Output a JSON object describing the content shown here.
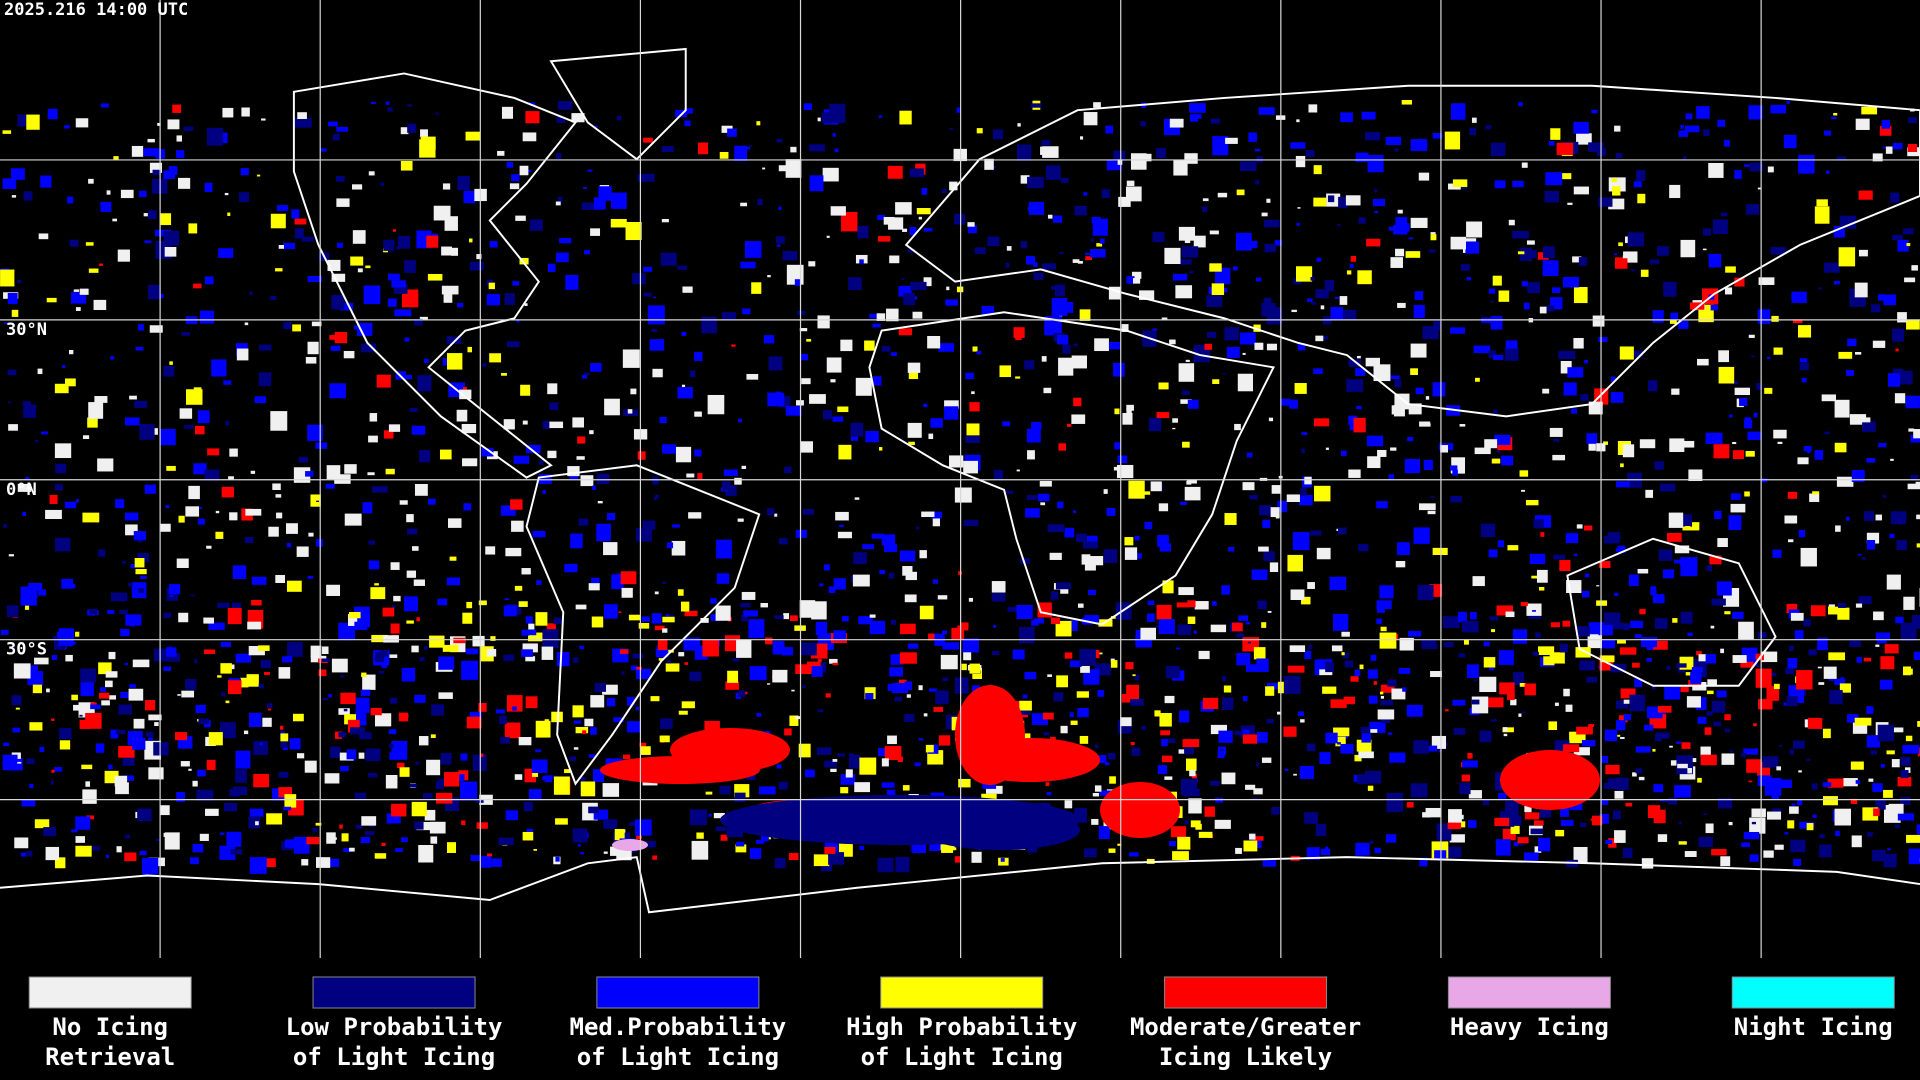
{
  "header": {
    "timestamp": "2025.216 14:00 UTC"
  },
  "latitude_labels": [
    "30°N",
    "0°N",
    "30°S"
  ],
  "legend": [
    {
      "lines": [
        "No Icing",
        "Retrieval"
      ],
      "color": "#f0f0f0"
    },
    {
      "lines": [
        "Low Probability",
        "of Light Icing"
      ],
      "color": "#000080"
    },
    {
      "lines": [
        "Med.Probability",
        "of Light Icing"
      ],
      "color": "#0000ff"
    },
    {
      "lines": [
        "High Probability",
        "of Light Icing"
      ],
      "color": "#ffff00"
    },
    {
      "lines": [
        "Moderate/Greater",
        "Icing Likely"
      ],
      "color": "#ff0000"
    },
    {
      "lines": [
        "Heavy Icing"
      ],
      "color": "#e8a8e8"
    },
    {
      "lines": [
        "Night Icing"
      ],
      "color": "#00ffff"
    }
  ]
}
